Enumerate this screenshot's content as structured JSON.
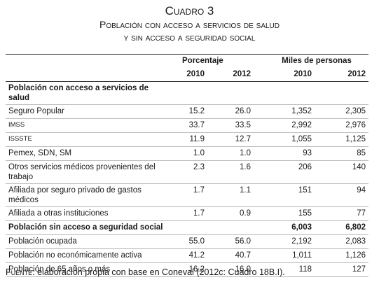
{
  "title": "Cuadro 3",
  "subtitle_lines": [
    "Población con acceso a servicios de salud",
    "y sin acceso a seguridad social"
  ],
  "table": {
    "group_headers": [
      "Porcentaje",
      "Miles de personas"
    ],
    "years": [
      "2010",
      "2012",
      "2010",
      "2012"
    ],
    "rows": [
      {
        "label": "Población con acceso a servicios de salud"
      },
      {
        "label": "Seguro Popular",
        "porcentaje": [
          "15.2",
          "26.0"
        ],
        "miles": [
          "1,352",
          "2,305"
        ]
      },
      {
        "label": "IMSS",
        "porcentaje": [
          "33.7",
          "33.5"
        ],
        "miles": [
          "2,992",
          "2,976"
        ]
      },
      {
        "label": "ISSSTE",
        "porcentaje": [
          "11.9",
          "12.7"
        ],
        "miles": [
          "1,055",
          "1,125"
        ]
      },
      {
        "label": "Pemex, SDN, SM",
        "porcentaje": [
          "1.0",
          "1.0"
        ],
        "miles": [
          "93",
          "85"
        ]
      },
      {
        "label": "Otros servicios médicos provenientes del trabajo",
        "porcentaje": [
          "2.3",
          "1.6"
        ],
        "miles": [
          "206",
          "140"
        ]
      },
      {
        "label": "Afiliada por seguro privado de gastos médicos",
        "porcentaje": [
          "1.7",
          "1.1"
        ],
        "miles": [
          "151",
          "94"
        ]
      },
      {
        "label": "Afiliada a otras instituciones",
        "porcentaje": [
          "1.7",
          "0.9"
        ],
        "miles": [
          "155",
          "77"
        ]
      },
      {
        "label": "Población sin acceso a seguridad social",
        "miles": [
          "6,003",
          "6,802"
        ]
      },
      {
        "label": "Población ocupada",
        "porcentaje": [
          "55.0",
          "56.0"
        ],
        "miles": [
          "2,192",
          "2,083"
        ]
      },
      {
        "label": "Población no económicamente activa",
        "porcentaje": [
          "41.2",
          "40.7"
        ],
        "miles": [
          "1,011",
          "1,126"
        ]
      },
      {
        "label": "Población de 65 años o más",
        "porcentaje": [
          "16.2",
          "16.0"
        ],
        "miles": [
          "118",
          "127"
        ]
      }
    ]
  },
  "source_label": "Fuente",
  "source_text": ": elaboración propia con base en Coneval (2012c: Cuadro 18B.I)."
}
